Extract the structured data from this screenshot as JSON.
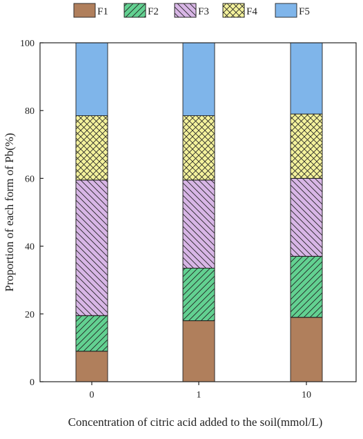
{
  "chart_data": {
    "type": "bar",
    "stacked": true,
    "title": "",
    "xlabel": "Concentration of citric acid added to the soil(mmol/L)",
    "ylabel": "Proportion of each form of Pb(%)",
    "categories": [
      "0",
      "1",
      "10"
    ],
    "ylim": [
      0,
      100
    ],
    "yticks": [
      "0",
      "20",
      "40",
      "60",
      "80",
      "100"
    ],
    "grid": false,
    "legend_position": "top",
    "series": [
      {
        "name": "F1",
        "color": "#b07f5c",
        "pattern": "solid",
        "values": [
          9,
          18,
          19
        ]
      },
      {
        "name": "F2",
        "color": "#62d191",
        "pattern": "diagonal-forward",
        "values": [
          10.5,
          15.5,
          18
        ]
      },
      {
        "name": "F3",
        "color": "#d8b6e6",
        "pattern": "diagonal-back",
        "values": [
          40,
          26,
          23
        ]
      },
      {
        "name": "F4",
        "color": "#f4f29c",
        "pattern": "crosshatch",
        "values": [
          19,
          19,
          19
        ]
      },
      {
        "name": "F5",
        "color": "#7fb5ea",
        "pattern": "solid",
        "values": [
          21.5,
          21.5,
          21
        ]
      }
    ]
  }
}
